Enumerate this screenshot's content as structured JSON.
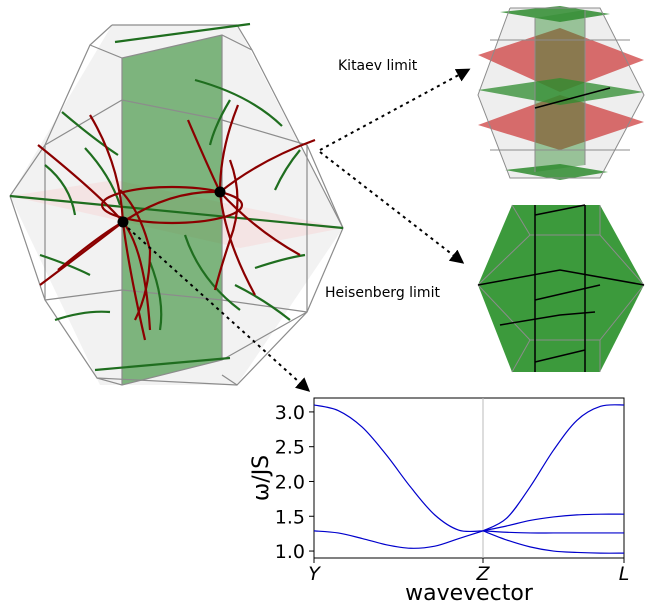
{
  "labels": {
    "kitaev": "Kitaev limit",
    "heisenberg": "Heisenberg limit"
  },
  "colors": {
    "green_line": "#1f6e1f",
    "red_line": "#8b0000",
    "green_plane": "#2e8b2e",
    "red_plane": "#cc3333",
    "cell_edge": "#8c8c8c",
    "band": "#0000cc"
  },
  "chart_data": {
    "type": "line",
    "xlabel": "wavevector",
    "ylabel": "ω/JS",
    "x_ticks": [
      "Y",
      "Z",
      "L"
    ],
    "ylim": [
      0.9,
      3.2
    ],
    "y_ticks": [
      "1.0",
      "1.5",
      "2.0",
      "2.5",
      "3.0"
    ],
    "grid": false,
    "series": [
      {
        "segment": "Y-Z",
        "values": [
          3.1,
          3.02,
          2.78,
          2.38,
          1.92,
          1.52,
          1.3,
          1.29
        ]
      },
      {
        "segment": "Y-Z",
        "values": [
          1.29,
          1.26,
          1.18,
          1.09,
          1.04,
          1.07,
          1.18,
          1.29
        ]
      },
      {
        "segment": "Z-L",
        "values": [
          1.29,
          1.47,
          1.92,
          2.45,
          2.88,
          3.08,
          3.1
        ]
      },
      {
        "segment": "Z-L",
        "values": [
          1.29,
          1.36,
          1.44,
          1.49,
          1.52,
          1.53,
          1.53
        ]
      },
      {
        "segment": "Z-L",
        "values": [
          1.29,
          1.27,
          1.26,
          1.26,
          1.26,
          1.26,
          1.26
        ]
      },
      {
        "segment": "Z-L",
        "values": [
          1.29,
          1.16,
          1.06,
          1.0,
          0.98,
          0.97,
          0.97
        ]
      }
    ]
  }
}
